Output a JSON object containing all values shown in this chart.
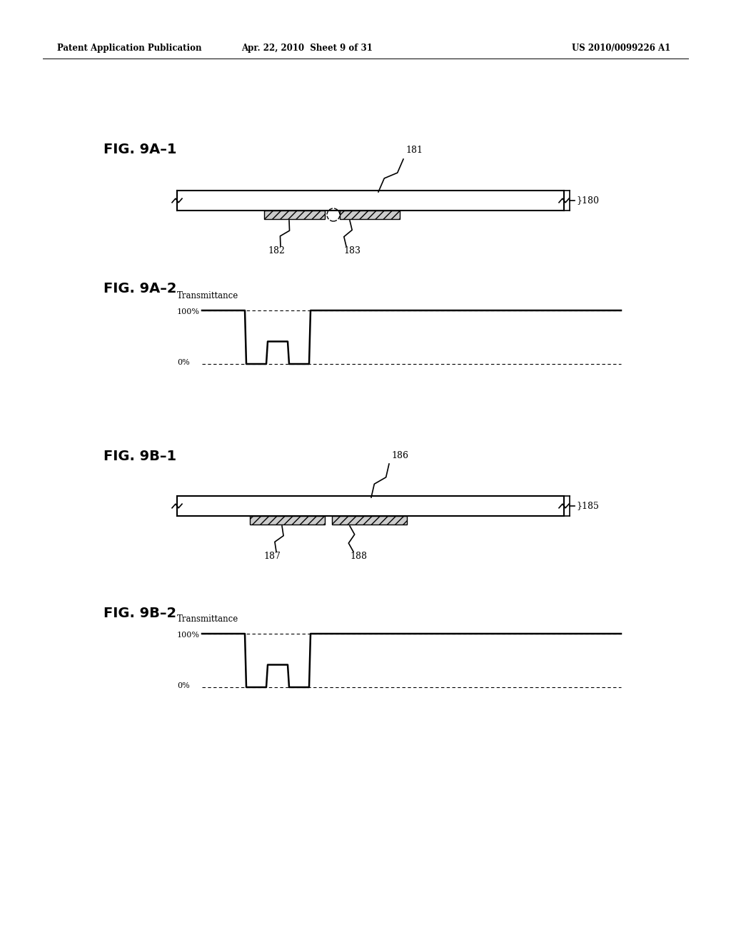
{
  "header_left": "Patent Application Publication",
  "header_mid": "Apr. 22, 2010  Sheet 9 of 31",
  "header_right": "US 2010/0099226 A1",
  "fig_9a1_label": "FIG. 9A–1",
  "fig_9a2_label": "FIG. 9A–2",
  "fig_9b1_label": "FIG. 9B–1",
  "fig_9b2_label": "FIG. 9B–2",
  "label_180": "180",
  "label_181": "181",
  "label_182": "182",
  "label_183": "183",
  "label_185": "185",
  "label_186": "186",
  "label_187": "187",
  "label_188": "188",
  "transmittance_label": "Transmittance",
  "pct_100": "100%",
  "pct_0": "0%",
  "bg_color": "#ffffff",
  "line_color": "#000000"
}
